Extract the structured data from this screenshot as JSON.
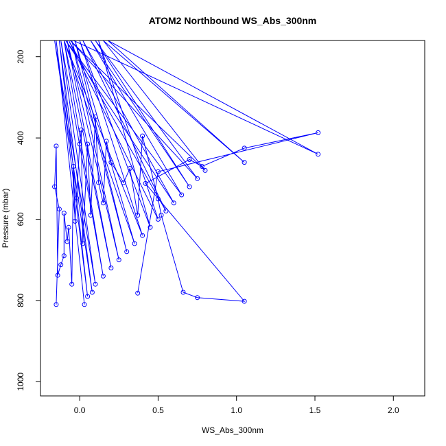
{
  "chart_data": {
    "type": "line",
    "title": "ATOM2 Northbound WS_Abs_300nm",
    "xlabel": "WS_Abs_300nm",
    "ylabel": "Pressure (mbar)",
    "xlim": [
      -0.25,
      2.2
    ],
    "ylim": [
      1035,
      160
    ],
    "y_reversed": true,
    "x_ticks": [
      "0.0",
      "0.5",
      "1.0",
      "1.5",
      "2.0"
    ],
    "x_tick_values": [
      0,
      0.5,
      1,
      1.5,
      2
    ],
    "y_ticks": [
      "200",
      "400",
      "600",
      "800",
      "1000"
    ],
    "y_tick_values": [
      200,
      400,
      600,
      800,
      1000
    ],
    "grid": false,
    "series_color": "#0000ff",
    "series": [
      {
        "x": [
          0.03,
          -0.15,
          0.05,
          -0.13,
          0.08,
          -0.16,
          0.1,
          -0.12,
          0.15,
          -0.1,
          0.2,
          -0.08,
          0.25,
          -0.05,
          0.3,
          -0.03,
          0.35,
          -0.1,
          0.4,
          0.0,
          0.45,
          0.12,
          0.5,
          -0.07,
          0.55,
          0.02,
          0.6,
          -0.09,
          0.65,
          0.07,
          0.7,
          0.1,
          0.75,
          -0.06,
          0.8,
          0.15,
          1.05,
          0.18,
          1.52,
          -0.04
        ],
        "y": [
          810,
          160,
          790,
          160,
          780,
          160,
          760,
          160,
          740,
          160,
          720,
          160,
          700,
          160,
          680,
          160,
          660,
          160,
          640,
          160,
          620,
          160,
          600,
          160,
          580,
          160,
          560,
          160,
          540,
          160,
          520,
          160,
          500,
          160,
          480,
          160,
          460,
          160,
          440,
          160
        ]
      },
      {
        "x": [
          -0.15,
          -0.13,
          -0.16,
          -0.15,
          -0.14,
          -0.12,
          -0.1,
          -0.1,
          -0.08,
          -0.07,
          -0.05,
          -0.04,
          -0.03,
          -0.02,
          0.0,
          0.01,
          0.02,
          0.05,
          0.07,
          0.1,
          0.12,
          0.15,
          0.17,
          0.2,
          0.28,
          0.32,
          0.37,
          0.4,
          0.5,
          0.52,
          0.66,
          0.75,
          1.05,
          0.42,
          0.7,
          0.78,
          1.05,
          1.52,
          0.5,
          0.37
        ],
        "y": [
          810,
          575,
          520,
          420,
          738,
          712,
          690,
          585,
          655,
          620,
          760,
          470,
          605,
          548,
          415,
          380,
          660,
          415,
          590,
          348,
          510,
          560,
          408,
          460,
          510,
          475,
          590,
          395,
          550,
          590,
          780,
          793,
          802,
          512,
          453,
          470,
          425,
          387,
          483,
          782
        ]
      }
    ]
  }
}
